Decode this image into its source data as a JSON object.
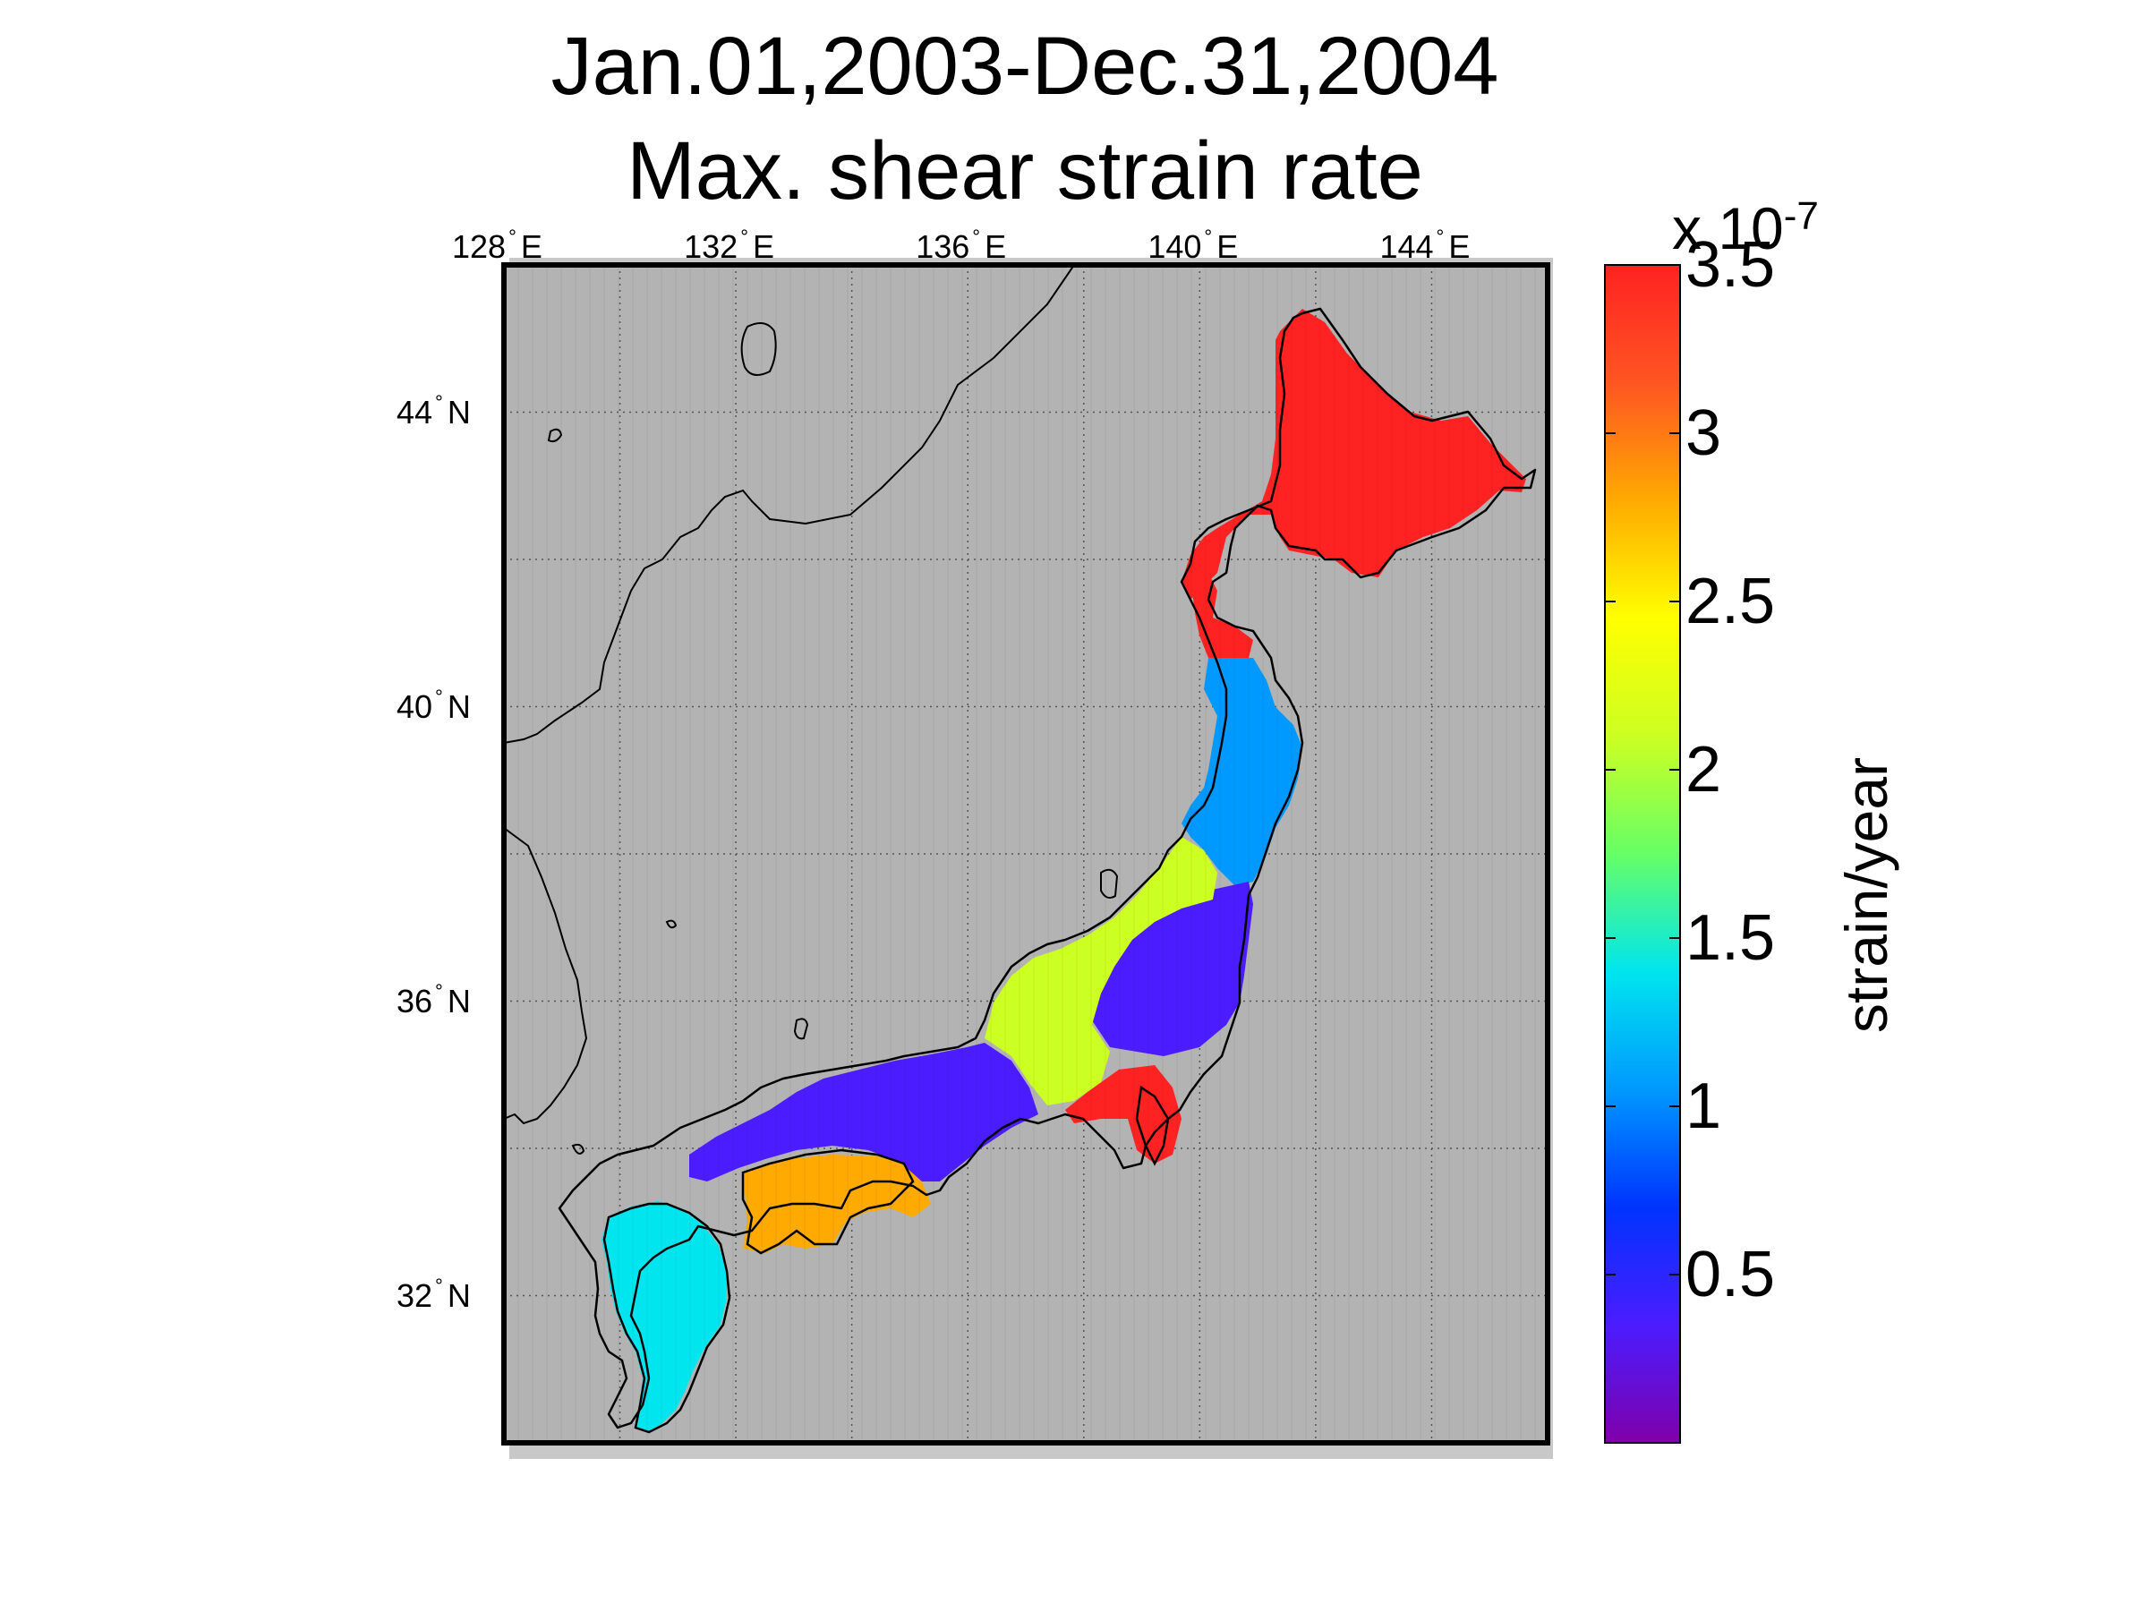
{
  "title_line1": "Jan.01,2003-Dec.31,2004",
  "title_line2": "Max. shear strain rate",
  "map": {
    "background_color": "#b3b3b3",
    "lon_range": [
      128,
      146
    ],
    "lat_range": [
      30,
      46
    ],
    "lon_ticks": [
      {
        "value": 128,
        "num": "128",
        "dir": "E"
      },
      {
        "value": 132,
        "num": "132",
        "dir": "E"
      },
      {
        "value": 136,
        "num": "136",
        "dir": "E"
      },
      {
        "value": 140,
        "num": "140",
        "dir": "E"
      },
      {
        "value": 144,
        "num": "144",
        "dir": "E"
      }
    ],
    "lat_ticks": [
      {
        "value": 44,
        "num": "44",
        "dir": "N"
      },
      {
        "value": 40,
        "num": "40",
        "dir": "N"
      },
      {
        "value": 36,
        "num": "36",
        "dir": "N"
      },
      {
        "value": 32,
        "num": "32",
        "dir": "N"
      }
    ],
    "strain_regions": [
      {
        "region": "Hokkaido",
        "level": "3.5"
      },
      {
        "region": "Northern Tohoku",
        "level": "1.2"
      },
      {
        "region": "Central Honshu",
        "level": "0.5"
      },
      {
        "region": "Niigata-Kobe zone",
        "level": "2.2"
      },
      {
        "region": "Izu Peninsula",
        "level": "3.4"
      },
      {
        "region": "Shikoku",
        "level": "2.9"
      },
      {
        "region": "Chugoku",
        "level": "0.5"
      },
      {
        "region": "Kyushu",
        "level": "1.5"
      }
    ]
  },
  "colorbar": {
    "range": [
      0,
      3.5
    ],
    "ticks": [
      "3.5",
      "3",
      "2.5",
      "2",
      "1.5",
      "1",
      "0.5"
    ],
    "tick_values": [
      3.5,
      3,
      2.5,
      2,
      1.5,
      1,
      0.5
    ],
    "exponent_text": "x 10",
    "exponent_power": "-7",
    "label": "strain/year",
    "colormap": [
      "#7f00aa",
      "#4b1cff",
      "#0033ff",
      "#0099ff",
      "#00e5ee",
      "#66ff66",
      "#ccff22",
      "#ffff00",
      "#ffaa00",
      "#ff5522",
      "#ff2222"
    ]
  }
}
